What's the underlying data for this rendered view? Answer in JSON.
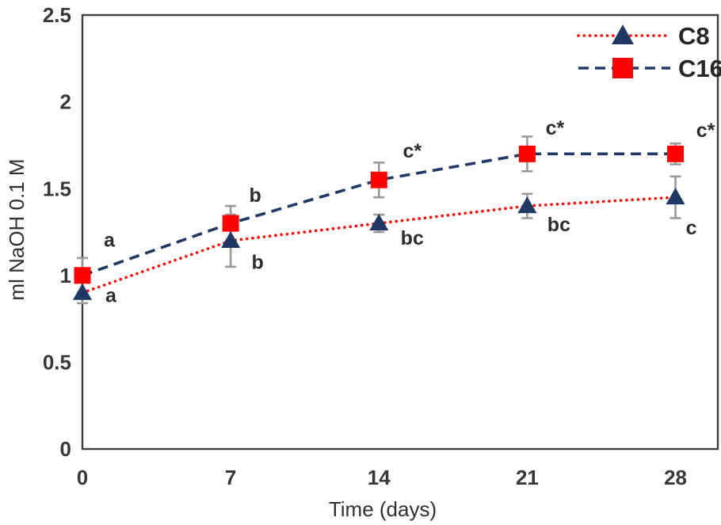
{
  "chart_data": {
    "type": "line",
    "title": "",
    "xlabel": "Time (days)",
    "ylabel": "ml NaOH 0.1 M",
    "x": [
      0,
      7,
      14,
      21,
      28
    ],
    "xlim": [
      0,
      30
    ],
    "ylim": [
      0,
      2.5
    ],
    "xticks": [
      "0",
      "7",
      "14",
      "21",
      "28"
    ],
    "yticks": [
      "0",
      "0.5",
      "1",
      "1.5",
      "2",
      "2.5"
    ],
    "ytick_values": [
      0,
      0.5,
      1,
      1.5,
      2,
      2.5
    ],
    "grid": false,
    "legend_position": "top-right-inside",
    "series": [
      {
        "name": "C8",
        "values": [
          0.9,
          1.2,
          1.3,
          1.4,
          1.45
        ],
        "errors": [
          0.06,
          0.15,
          0.05,
          0.07,
          0.12
        ],
        "point_labels": [
          "a",
          "b",
          "bc",
          "bc",
          "c"
        ],
        "label_offsets": [
          [
            36,
            3
          ],
          [
            34,
            27
          ],
          [
            42,
            18
          ],
          [
            40,
            23
          ],
          [
            20,
            38
          ]
        ],
        "line_color": "#fe0000",
        "line_style": "dotted",
        "marker": "triangle",
        "marker_color": "#1f3864"
      },
      {
        "name": "C16",
        "values": [
          1.0,
          1.3,
          1.55,
          1.7,
          1.7
        ],
        "errors": [
          0.1,
          0.1,
          0.1,
          0.1,
          0.06
        ],
        "point_labels": [
          "a",
          "b",
          "c*",
          "c*",
          "c*"
        ],
        "label_offsets": [
          [
            34,
            -45
          ],
          [
            31,
            -36
          ],
          [
            42,
            -37
          ],
          [
            35,
            -33
          ],
          [
            38,
            -30
          ]
        ],
        "line_color": "#1f3864",
        "line_style": "dashed",
        "marker": "square",
        "marker_color": "#fe0000"
      }
    ],
    "colors": {
      "red": "#fe0000",
      "navy": "#1f3864",
      "error_bar": "#9a9a9a",
      "axis_border": "#3f3f3f",
      "text": "#333333"
    }
  }
}
